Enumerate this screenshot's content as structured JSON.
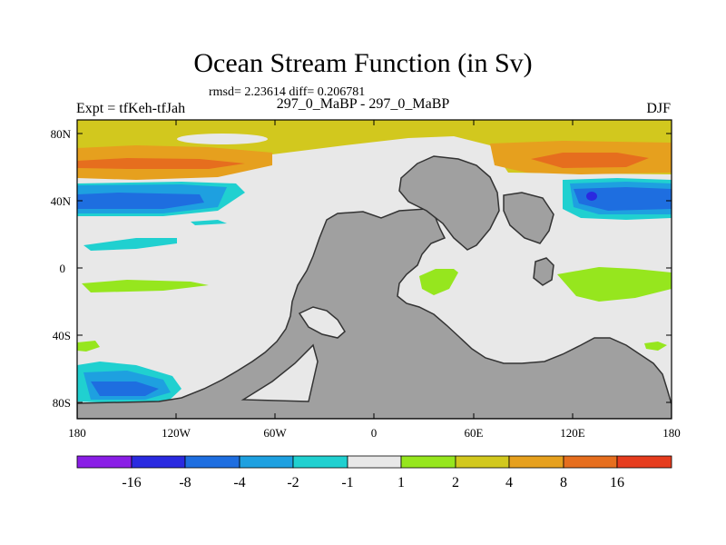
{
  "title": "Ocean Stream Function (in Sv)",
  "stats": "rmsd= 2.23614 diff= 0.206781",
  "left_string": "Expt = tfKeh-tfJah",
  "center_string": "297_0_MaBP - 297_0_MaBP",
  "right_string": "DJF",
  "map": {
    "y_ticks": [
      "80N",
      "40N",
      "0",
      "40S",
      "80S"
    ],
    "x_ticks": [
      "180",
      "120W",
      "60W",
      "0",
      "60E",
      "120E",
      "180"
    ],
    "colors": {
      "land": "#a0a0a0",
      "coast": "#333333",
      "neutral": "#e8e8e8"
    }
  },
  "colorbar": {
    "labels": [
      "-16",
      "-8",
      "-4",
      "-2",
      "-1",
      "1",
      "2",
      "4",
      "8",
      "16"
    ],
    "colors": [
      "#8a1ee6",
      "#2a2ae0",
      "#1e6ee0",
      "#1ea0e0",
      "#20d0d0",
      "#e8e8e8",
      "#96e61e",
      "#d2c81e",
      "#e6a01e",
      "#e66e1e",
      "#e63c1e"
    ]
  }
}
